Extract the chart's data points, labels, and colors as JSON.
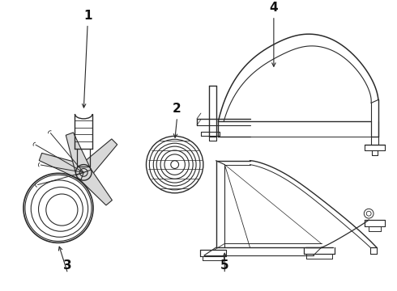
{
  "bg_color": "#ffffff",
  "line_color": "#2a2a2a",
  "label_color": "#111111",
  "label_fontsize": 10,
  "figsize": [
    4.9,
    3.6
  ],
  "dpi": 100
}
